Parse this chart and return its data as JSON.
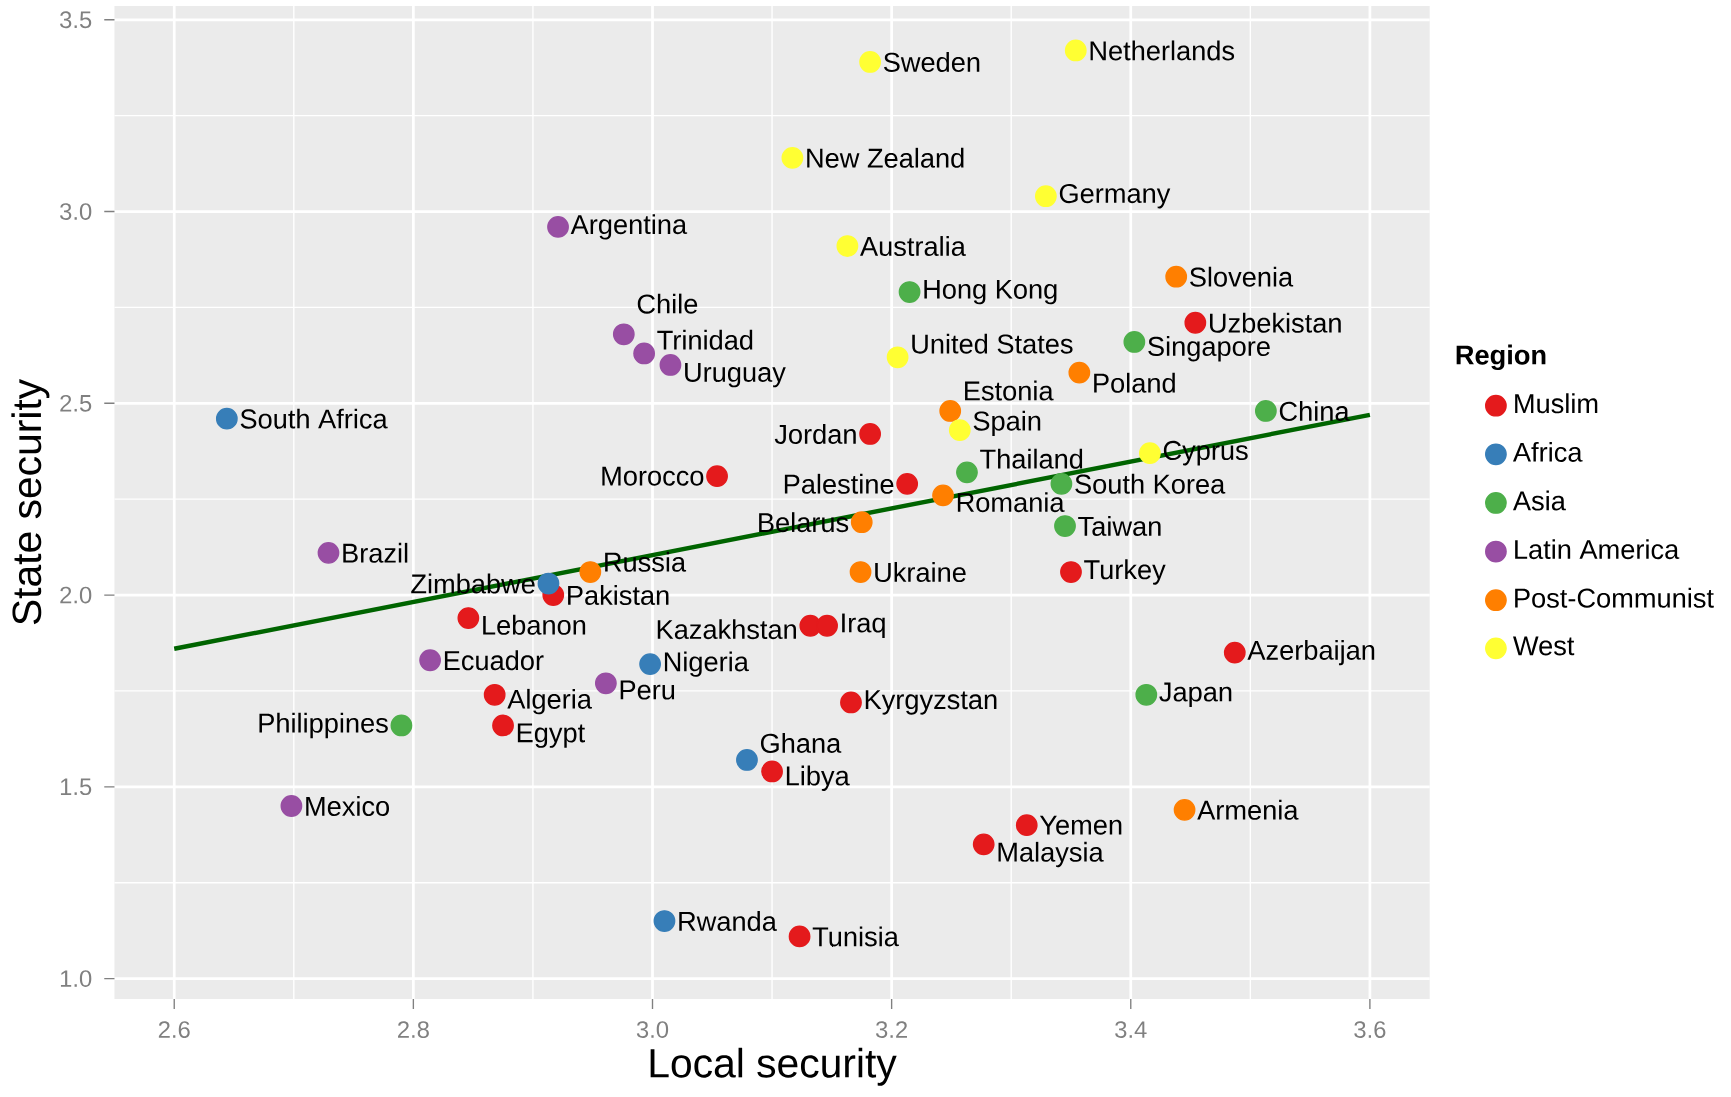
{
  "chart_data": {
    "type": "scatter",
    "xlabel": "Local security",
    "ylabel": "State security",
    "legend_title": "Region",
    "xlim": [
      2.55,
      3.65
    ],
    "ylim": [
      0.947,
      3.536
    ],
    "xticks": [
      {
        "value": 2.6,
        "label": "2.6"
      },
      {
        "value": 2.8,
        "label": "2.8"
      },
      {
        "value": 3.0,
        "label": "3.0"
      },
      {
        "value": 3.2,
        "label": "3.2"
      },
      {
        "value": 3.4,
        "label": "3.4"
      },
      {
        "value": 3.6,
        "label": "3.6"
      }
    ],
    "yticks": [
      {
        "value": 1.0,
        "label": "1.0"
      },
      {
        "value": 1.5,
        "label": "1.5"
      },
      {
        "value": 2.0,
        "label": "2.0"
      },
      {
        "value": 2.5,
        "label": "2.5"
      },
      {
        "value": 3.0,
        "label": "3.0"
      },
      {
        "value": 3.5,
        "label": "3.5"
      }
    ],
    "grid": true,
    "legend": "right",
    "series": [
      {
        "name": "Muslim",
        "marker": "circle",
        "color": "#e41a1c",
        "x": [
          3.454,
          3.182,
          3.054,
          3.213,
          3.35,
          2.917,
          2.846,
          3.132,
          3.146,
          3.487,
          2.868,
          2.875,
          3.166,
          3.1,
          3.313,
          3.277,
          3.123
        ],
        "values": [
          2.71,
          2.42,
          2.31,
          2.29,
          2.06,
          2.0,
          1.94,
          1.92,
          1.92,
          1.85,
          1.74,
          1.66,
          1.72,
          1.54,
          1.4,
          1.35,
          1.11
        ]
      },
      {
        "name": "Africa",
        "marker": "circle",
        "color": "#377eb8",
        "x": [
          2.644,
          2.913,
          2.998,
          3.079,
          3.01
        ],
        "values": [
          2.46,
          2.03,
          1.82,
          1.57,
          1.15
        ]
      },
      {
        "name": "Asia",
        "marker": "circle",
        "color": "#4daf4a",
        "x": [
          3.215,
          3.403,
          3.513,
          3.263,
          3.342,
          3.345,
          3.413,
          2.79
        ],
        "values": [
          2.79,
          2.66,
          2.48,
          2.32,
          2.29,
          2.18,
          1.74,
          1.66
        ]
      },
      {
        "name": "Latin America",
        "marker": "circle",
        "color": "#984ea3",
        "x": [
          2.921,
          2.976,
          2.993,
          3.015,
          2.729,
          2.814,
          2.961,
          2.698
        ],
        "values": [
          2.96,
          2.68,
          2.63,
          2.6,
          2.11,
          1.83,
          1.77,
          1.45
        ]
      },
      {
        "name": "Post-Communist",
        "marker": "circle",
        "color": "#ff7f00",
        "x": [
          3.438,
          3.357,
          3.249,
          3.243,
          3.175,
          2.948,
          3.174,
          3.445
        ],
        "values": [
          2.83,
          2.58,
          2.48,
          2.26,
          2.19,
          2.06,
          2.06,
          1.44
        ]
      },
      {
        "name": "West",
        "marker": "circle",
        "color": "#ffff33",
        "x": [
          3.182,
          3.354,
          3.117,
          3.329,
          3.163,
          3.205,
          3.257,
          3.416
        ],
        "values": [
          3.39,
          3.42,
          3.14,
          3.04,
          2.91,
          2.62,
          2.43,
          2.37
        ]
      },
      {
        "type": "line",
        "marker": "none",
        "color": "#006400",
        "x": [
          2.6,
          3.6
        ],
        "values": [
          1.86,
          2.47
        ]
      }
    ],
    "annotations": [
      {
        "text": "Uzbekistan",
        "x": 3.454,
        "y": 2.71
      },
      {
        "text": "Jordan",
        "x": 3.182,
        "y": 2.42
      },
      {
        "text": "Morocco",
        "x": 3.054,
        "y": 2.31
      },
      {
        "text": "Palestine",
        "x": 3.213,
        "y": 2.29
      },
      {
        "text": "Turkey",
        "x": 3.35,
        "y": 2.06
      },
      {
        "text": "Pakistan",
        "x": 2.917,
        "y": 2.0
      },
      {
        "text": "Lebanon",
        "x": 2.846,
        "y": 1.94
      },
      {
        "text": "Kazakhstan",
        "x": 3.132,
        "y": 1.92
      },
      {
        "text": "Iraq",
        "x": 3.146,
        "y": 1.92
      },
      {
        "text": "Azerbaijan",
        "x": 3.487,
        "y": 1.85
      },
      {
        "text": "Algeria",
        "x": 2.868,
        "y": 1.74
      },
      {
        "text": "Egypt",
        "x": 2.875,
        "y": 1.66
      },
      {
        "text": "Kyrgyzstan",
        "x": 3.166,
        "y": 1.72
      },
      {
        "text": "Libya",
        "x": 3.1,
        "y": 1.54
      },
      {
        "text": "Yemen",
        "x": 3.313,
        "y": 1.4
      },
      {
        "text": "Malaysia",
        "x": 3.277,
        "y": 1.35
      },
      {
        "text": "Tunisia",
        "x": 3.123,
        "y": 1.11
      },
      {
        "text": "South Africa",
        "x": 2.644,
        "y": 2.46
      },
      {
        "text": "Zimbabwe",
        "x": 2.913,
        "y": 2.03
      },
      {
        "text": "Nigeria",
        "x": 2.998,
        "y": 1.82
      },
      {
        "text": "Ghana",
        "x": 3.079,
        "y": 1.57
      },
      {
        "text": "Rwanda",
        "x": 3.01,
        "y": 1.15
      },
      {
        "text": "Hong Kong",
        "x": 3.215,
        "y": 2.79
      },
      {
        "text": "Singapore",
        "x": 3.403,
        "y": 2.66
      },
      {
        "text": "China",
        "x": 3.513,
        "y": 2.48
      },
      {
        "text": "Thailand",
        "x": 3.263,
        "y": 2.32
      },
      {
        "text": "South Korea",
        "x": 3.342,
        "y": 2.29
      },
      {
        "text": "Taiwan",
        "x": 3.345,
        "y": 2.18
      },
      {
        "text": "Japan",
        "x": 3.413,
        "y": 1.74
      },
      {
        "text": "Philippines",
        "x": 2.79,
        "y": 1.66
      },
      {
        "text": "Argentina",
        "x": 2.921,
        "y": 2.96
      },
      {
        "text": "Chile",
        "x": 2.976,
        "y": 2.68
      },
      {
        "text": "Trinidad",
        "x": 2.993,
        "y": 2.63
      },
      {
        "text": "Uruguay",
        "x": 3.015,
        "y": 2.6
      },
      {
        "text": "Brazil",
        "x": 2.729,
        "y": 2.11
      },
      {
        "text": "Ecuador",
        "x": 2.814,
        "y": 1.83
      },
      {
        "text": "Peru",
        "x": 2.961,
        "y": 1.77
      },
      {
        "text": "Mexico",
        "x": 2.698,
        "y": 1.45
      },
      {
        "text": "Slovenia",
        "x": 3.438,
        "y": 2.83
      },
      {
        "text": "Poland",
        "x": 3.357,
        "y": 2.58
      },
      {
        "text": "Estonia",
        "x": 3.249,
        "y": 2.48
      },
      {
        "text": "Romania",
        "x": 3.243,
        "y": 2.26
      },
      {
        "text": "Belarus",
        "x": 3.175,
        "y": 2.19
      },
      {
        "text": "Russia",
        "x": 2.948,
        "y": 2.06
      },
      {
        "text": "Ukraine",
        "x": 3.174,
        "y": 2.06
      },
      {
        "text": "Armenia",
        "x": 3.445,
        "y": 1.44
      },
      {
        "text": "Sweden",
        "x": 3.182,
        "y": 3.39
      },
      {
        "text": "Netherlands",
        "x": 3.354,
        "y": 3.42
      },
      {
        "text": "New Zealand",
        "x": 3.117,
        "y": 3.14
      },
      {
        "text": "Germany",
        "x": 3.329,
        "y": 3.04
      },
      {
        "text": "Australia",
        "x": 3.163,
        "y": 2.91
      },
      {
        "text": "United States",
        "x": 3.205,
        "y": 2.62
      },
      {
        "text": "Spain",
        "x": 3.257,
        "y": 2.43
      },
      {
        "text": "Cyprus",
        "x": 3.416,
        "y": 2.37
      }
    ]
  }
}
